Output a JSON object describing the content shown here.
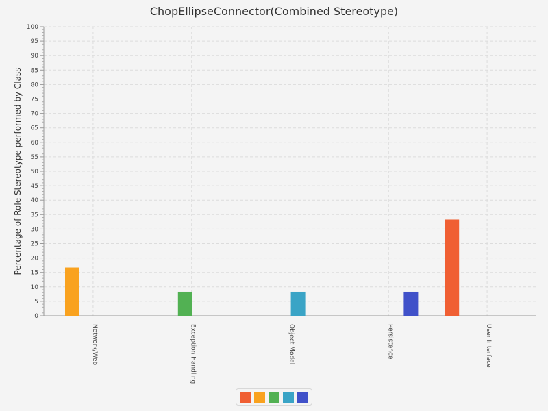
{
  "chart_data": {
    "type": "bar",
    "title": "ChopEllipseConnector(Combined Stereotype)",
    "xlabel": "",
    "ylabel": "Percentage of Role Stereotype performed by Class",
    "ylim": [
      0,
      100
    ],
    "ytick_step": 5,
    "grid": true,
    "legend_position": "bottom-center",
    "categories": [
      "Network/Web",
      "Exception Handling",
      "Object Model",
      "Persistence",
      "User Interface"
    ],
    "series_colors": [
      "#f05f33",
      "#f9a21f",
      "#52b153",
      "#3aa4c6",
      "#4051c9"
    ],
    "series": [
      {
        "values": [
          0,
          0,
          0,
          0,
          33.3
        ]
      },
      {
        "values": [
          16.7,
          0,
          0,
          0,
          0
        ]
      },
      {
        "values": [
          0,
          8.3,
          0,
          0,
          0
        ]
      },
      {
        "values": [
          0,
          0,
          8.3,
          0,
          0
        ]
      },
      {
        "values": [
          0,
          0,
          0,
          8.3,
          0
        ]
      }
    ]
  }
}
